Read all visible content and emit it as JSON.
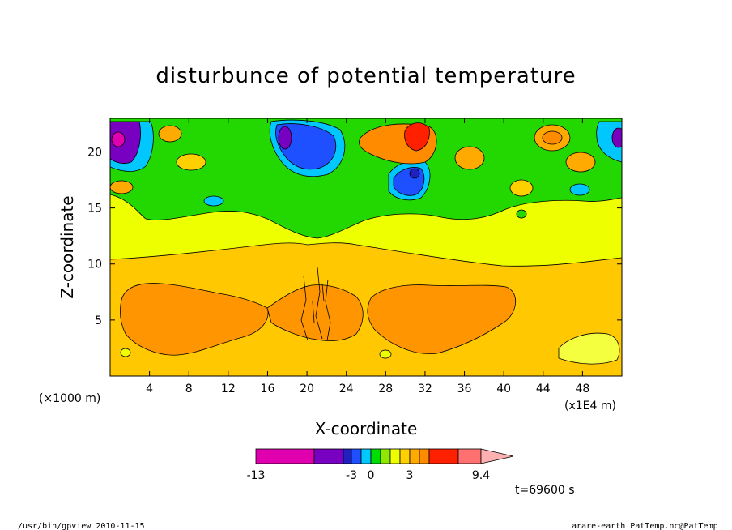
{
  "chart_data": {
    "type": "heatmap",
    "title": "disturbunce of potential temperature",
    "xlabel": "X-coordinate",
    "ylabel": "Z-coordinate",
    "x_unit_left": "(×1000 m)",
    "x_unit_right": "(x1E4 m)",
    "xlim": [
      0,
      52
    ],
    "ylim": [
      0,
      23
    ],
    "x_ticks": [
      4,
      8,
      12,
      16,
      20,
      24,
      28,
      32,
      36,
      40,
      44,
      48
    ],
    "y_ticks": [
      5,
      10,
      15,
      20
    ],
    "colorbar": {
      "colors": [
        "#e000b0",
        "#7800c0",
        "#2020c0",
        "#1e50ff",
        "#00c8ff",
        "#00dd00",
        "#90e800",
        "#eeff00",
        "#ffd000",
        "#ffaa00",
        "#ff8c00",
        "#ff2000",
        "#ff7070",
        "#ffb0b0"
      ],
      "labels": [
        "-13",
        "-3",
        "0",
        "3",
        "9.4"
      ]
    },
    "regions": [
      {
        "level": "orange",
        "shape": "left warm core",
        "x": [
          1.5,
          14
        ],
        "z": [
          2.2,
          8
        ]
      },
      {
        "level": "orange",
        "shape": "right warm core",
        "x": [
          26.5,
          40.5
        ],
        "z": [
          2.2,
          8
        ]
      },
      {
        "level": "orange",
        "shape": "central warm column",
        "x": [
          14,
          26.5
        ],
        "z": [
          3.5,
          8
        ]
      },
      {
        "level": "light-orange",
        "shape": "lower layer",
        "x": [
          0,
          52
        ],
        "z": [
          0,
          10.5
        ]
      },
      {
        "level": "yellow",
        "shape": "mid layer",
        "x": [
          0,
          52
        ],
        "z": [
          10.5,
          14.5
        ]
      },
      {
        "level": "green",
        "shape": "upper band",
        "x": [
          0,
          52
        ],
        "z": [
          14.5,
          23
        ]
      },
      {
        "level": "purple/magenta",
        "shape": "left-top cold cell",
        "x": [
          0,
          4
        ],
        "z": [
          18.5,
          23
        ]
      },
      {
        "level": "blue",
        "shape": "cold cell",
        "x": [
          17,
          22
        ],
        "z": [
          17.5,
          22.5
        ]
      },
      {
        "level": "blue",
        "shape": "cold cell",
        "x": [
          27,
          31.5
        ],
        "z": [
          15.5,
          19
        ]
      },
      {
        "level": "red",
        "shape": "warm cell",
        "x": [
          29,
          31.5
        ],
        "z": [
          20,
          23
        ]
      },
      {
        "level": "orange",
        "shape": "warm cell",
        "x": [
          42,
          45
        ],
        "z": [
          20,
          22
        ]
      },
      {
        "level": "purple",
        "shape": "right-top cold cell",
        "x": [
          50.5,
          52
        ],
        "z": [
          19.5,
          22.5
        ]
      },
      {
        "level": "light-yellow",
        "shape": "lower right patch",
        "x": [
          45,
          50.5
        ],
        "z": [
          1.2,
          3.8
        ]
      }
    ]
  },
  "annotations": {
    "time": "t=69600 s",
    "footer_left": "/usr/bin/gpview   2010-11-15",
    "footer_right": "arare-earth_PatTemp.nc@PatTemp"
  }
}
